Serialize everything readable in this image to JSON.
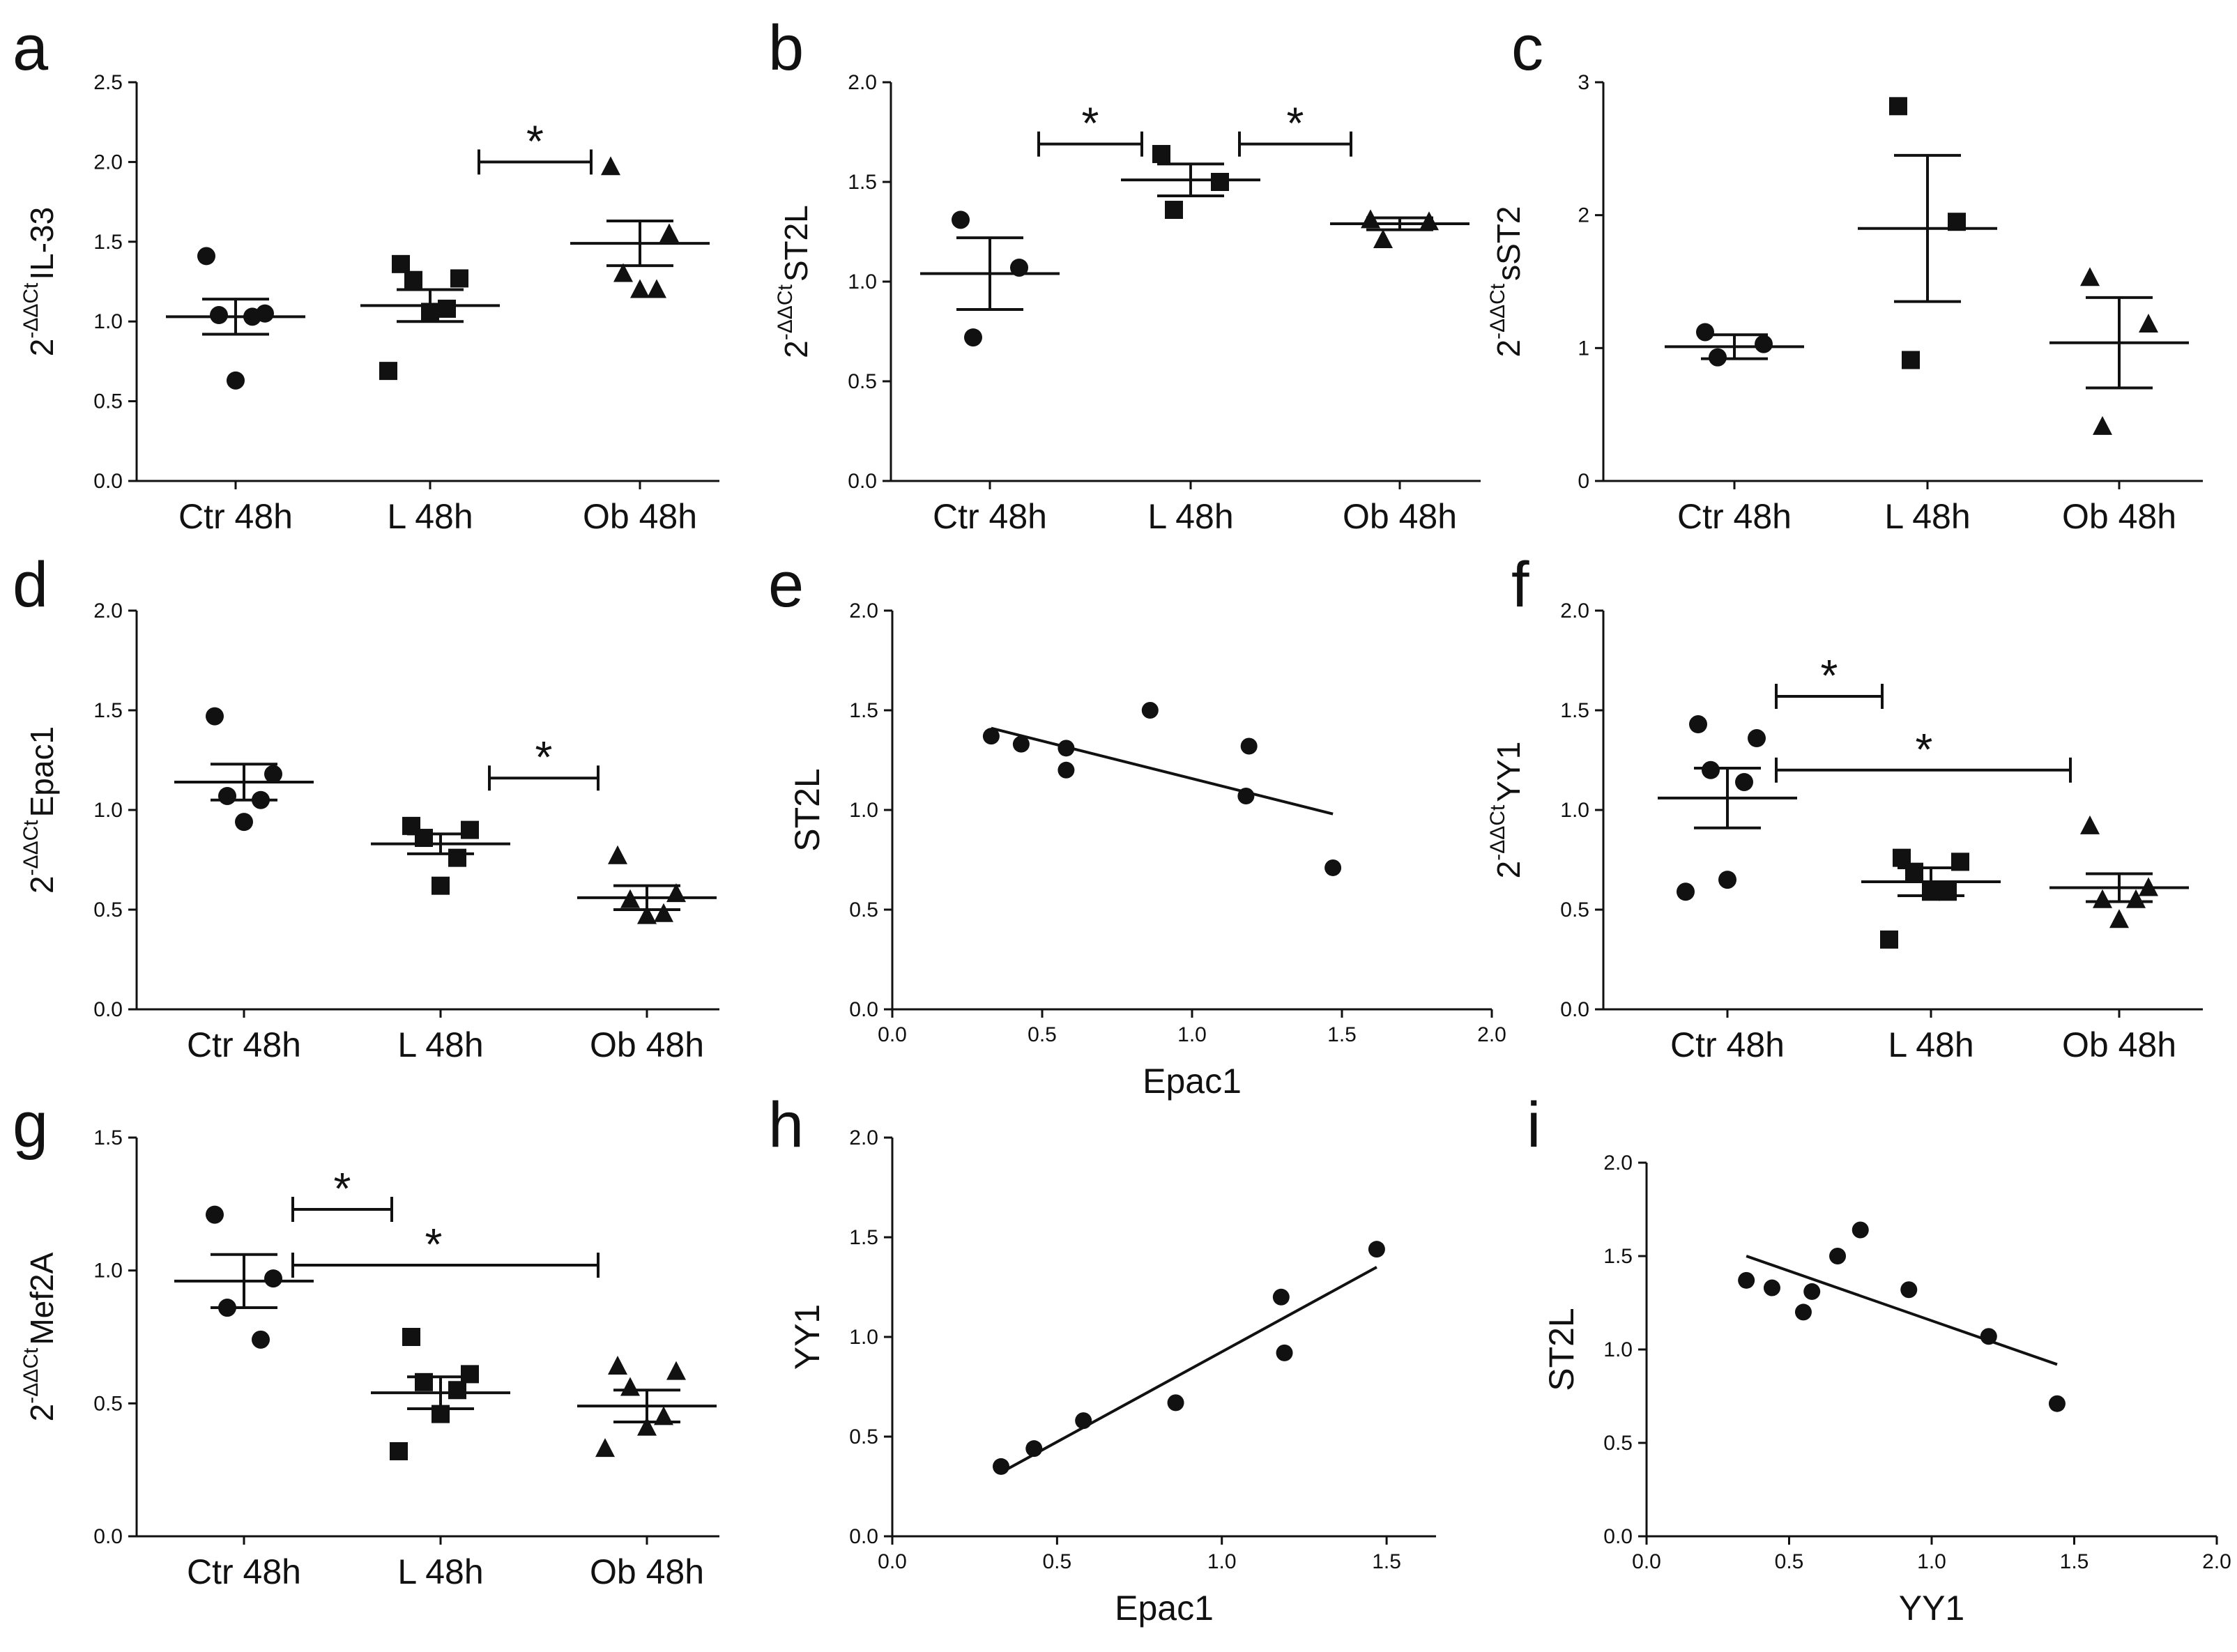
{
  "figure": {
    "panels": [
      {
        "letter": "a"
      },
      {
        "letter": "b"
      },
      {
        "letter": "c"
      },
      {
        "letter": "d"
      },
      {
        "letter": "e"
      },
      {
        "letter": "f"
      },
      {
        "letter": "g"
      },
      {
        "letter": "h"
      },
      {
        "letter": "i"
      }
    ]
  },
  "chart_data": [
    {
      "panel": "a",
      "type": "scatter",
      "categories": [
        "Ctr 48h",
        "L 48h",
        "Ob 48h"
      ],
      "ylabel": {
        "base": "2",
        "sup": "-ΔΔCt",
        "gene": "IL-33"
      },
      "ylim": [
        0,
        2.5
      ],
      "yticks": [
        "0.0",
        "0.5",
        "1.0",
        "1.5",
        "2.0",
        "2.5"
      ],
      "markers": [
        "circle",
        "square",
        "triangle"
      ],
      "points": [
        [
          1.41,
          1.05,
          1.04,
          1.03,
          0.63
        ],
        [
          1.36,
          1.27,
          1.26,
          1.08,
          1.06,
          0.69
        ],
        [
          1.97,
          1.55,
          1.3,
          1.2,
          1.2
        ]
      ],
      "mean": [
        1.03,
        1.1,
        1.49
      ],
      "sem": [
        0.11,
        0.1,
        0.14
      ],
      "significance": [
        {
          "from": 1,
          "to": 2,
          "level": 2.0,
          "label": "*"
        }
      ]
    },
    {
      "panel": "b",
      "type": "scatter",
      "categories": [
        "Ctr 48h",
        "L 48h",
        "Ob 48h"
      ],
      "ylabel": {
        "base": "2",
        "sup": "-ΔΔCt",
        "gene": "ST2L"
      },
      "ylim": [
        0,
        2.0
      ],
      "yticks": [
        "0.0",
        "0.5",
        "1.0",
        "1.5",
        "2.0"
      ],
      "markers": [
        "circle",
        "square",
        "triangle"
      ],
      "points": [
        [
          1.31,
          1.07,
          0.72
        ],
        [
          1.64,
          1.5,
          1.36
        ],
        [
          1.31,
          1.3,
          1.21
        ]
      ],
      "mean": [
        1.04,
        1.51,
        1.29
      ],
      "sem": [
        0.18,
        0.08,
        0.03
      ],
      "significance": [
        {
          "from": 0,
          "to": 1,
          "level": 1.69,
          "label": "*"
        },
        {
          "from": 1,
          "to": 2,
          "level": 1.69,
          "label": "*"
        }
      ]
    },
    {
      "panel": "c",
      "type": "scatter",
      "categories": [
        "Ctr 48h",
        "L 48h",
        "Ob 48h"
      ],
      "ylabel": {
        "base": "2",
        "sup": "-ΔΔCt",
        "gene": "sST2"
      },
      "ylim": [
        0,
        3
      ],
      "yticks": [
        "0",
        "1",
        "2",
        "3"
      ],
      "markers": [
        "circle",
        "square",
        "triangle"
      ],
      "points": [
        [
          1.12,
          1.03,
          0.93
        ],
        [
          2.82,
          1.95,
          0.91
        ],
        [
          1.53,
          1.18,
          0.41
        ]
      ],
      "mean": [
        1.01,
        1.9,
        1.04
      ],
      "sem": [
        0.09,
        0.55,
        0.34
      ],
      "significance": []
    },
    {
      "panel": "d",
      "type": "scatter",
      "categories": [
        "Ctr 48h",
        "L 48h",
        "Ob 48h"
      ],
      "ylabel": {
        "base": "2",
        "sup": "-ΔΔCt",
        "gene": "Epac1"
      },
      "ylim": [
        0,
        2.0
      ],
      "yticks": [
        "0.0",
        "0.5",
        "1.0",
        "1.5",
        "2.0"
      ],
      "markers": [
        "circle",
        "square",
        "triangle"
      ],
      "points": [
        [
          1.47,
          1.18,
          1.07,
          1.05,
          0.94
        ],
        [
          0.92,
          0.9,
          0.86,
          0.76,
          0.62
        ],
        [
          0.77,
          0.58,
          0.55,
          0.48,
          0.47
        ]
      ],
      "mean": [
        1.14,
        0.83,
        0.56
      ],
      "sem": [
        0.09,
        0.05,
        0.06
      ],
      "significance": [
        {
          "from": 1,
          "to": 2,
          "level": 1.16,
          "label": "*"
        }
      ]
    },
    {
      "panel": "e",
      "type": "scatter",
      "xlabel": "Epac1",
      "ylabel": "ST2L",
      "xlim": [
        0,
        2.0
      ],
      "ylim": [
        0,
        2.0
      ],
      "xticks": [
        "0.0",
        "0.5",
        "1.0",
        "1.5",
        "2.0"
      ],
      "yticks": [
        "0.0",
        "0.5",
        "1.0",
        "1.5",
        "2.0"
      ],
      "points": [
        [
          0.33,
          1.37
        ],
        [
          0.43,
          1.33
        ],
        [
          0.58,
          1.31
        ],
        [
          0.58,
          1.2
        ],
        [
          0.86,
          1.5
        ],
        [
          1.19,
          1.32
        ],
        [
          1.18,
          1.07
        ],
        [
          1.47,
          0.71
        ]
      ],
      "fit": {
        "x0": 0.33,
        "y0": 1.41,
        "x1": 1.47,
        "y1": 0.98
      }
    },
    {
      "panel": "f",
      "type": "scatter",
      "categories": [
        "Ctr 48h",
        "L 48h",
        "Ob 48h"
      ],
      "ylabel": {
        "base": "2",
        "sup": "-ΔΔCt",
        "gene": "YY1"
      },
      "ylim": [
        0,
        2.0
      ],
      "yticks": [
        "0.0",
        "0.5",
        "1.0",
        "1.5",
        "2.0"
      ],
      "markers": [
        "circle",
        "square",
        "triangle"
      ],
      "points": [
        [
          1.43,
          1.36,
          1.2,
          1.14,
          0.65,
          0.59
        ],
        [
          0.76,
          0.74,
          0.69,
          0.59,
          0.59,
          0.35
        ],
        [
          0.92,
          0.61,
          0.55,
          0.55,
          0.45
        ]
      ],
      "mean": [
        1.06,
        0.64,
        0.61
      ],
      "sem": [
        0.15,
        0.07,
        0.07
      ],
      "significance": [
        {
          "from": 0,
          "to": 1,
          "level": 1.57,
          "label": "*"
        },
        {
          "from": 0,
          "to": 2,
          "level": 1.2,
          "label": "*"
        }
      ]
    },
    {
      "panel": "g",
      "type": "scatter",
      "categories": [
        "Ctr 48h",
        "L 48h",
        "Ob 48h"
      ],
      "ylabel": {
        "base": "2",
        "sup": "-ΔΔCt",
        "gene": "Mef2A"
      },
      "ylim": [
        0,
        1.5
      ],
      "yticks": [
        "0.0",
        "0.5",
        "1.0",
        "1.5"
      ],
      "markers": [
        "circle",
        "square",
        "triangle"
      ],
      "points": [
        [
          1.21,
          0.97,
          0.86,
          0.74
        ],
        [
          0.75,
          0.61,
          0.58,
          0.55,
          0.46,
          0.32
        ],
        [
          0.64,
          0.62,
          0.56,
          0.45,
          0.41,
          0.33
        ]
      ],
      "mean": [
        0.96,
        0.54,
        0.49
      ],
      "sem": [
        0.1,
        0.06,
        0.06
      ],
      "significance": [
        {
          "from": 0,
          "to": 1,
          "level": 1.23,
          "label": "*"
        },
        {
          "from": 0,
          "to": 2,
          "level": 1.02,
          "label": "*"
        }
      ]
    },
    {
      "panel": "h",
      "type": "scatter",
      "xlabel": "Epac1",
      "ylabel": "YY1",
      "xlim": [
        0,
        1.65
      ],
      "ylim": [
        0,
        2.0
      ],
      "xticks": [
        "0.0",
        "0.5",
        "1.0",
        "1.5"
      ],
      "yticks": [
        "0.0",
        "0.5",
        "1.0",
        "1.5",
        "2.0"
      ],
      "points": [
        [
          0.33,
          0.35
        ],
        [
          0.43,
          0.44
        ],
        [
          0.58,
          0.58
        ],
        [
          0.86,
          0.67
        ],
        [
          1.18,
          1.2
        ],
        [
          1.19,
          0.92
        ],
        [
          1.47,
          1.44
        ]
      ],
      "fit": {
        "x0": 0.33,
        "y0": 0.32,
        "x1": 1.47,
        "y1": 1.35
      }
    },
    {
      "panel": "i",
      "type": "scatter",
      "xlabel": "YY1",
      "ylabel": "ST2L",
      "xlim": [
        0,
        2.0
      ],
      "ylim": [
        0,
        2.0
      ],
      "xticks": [
        "0.0",
        "0.5",
        "1.0",
        "1.5",
        "2.0"
      ],
      "yticks": [
        "0.0",
        "0.5",
        "1.0",
        "1.5",
        "2.0"
      ],
      "points": [
        [
          0.35,
          1.37
        ],
        [
          0.44,
          1.33
        ],
        [
          0.58,
          1.31
        ],
        [
          0.55,
          1.2
        ],
        [
          0.67,
          1.5
        ],
        [
          0.75,
          1.64
        ],
        [
          0.92,
          1.32
        ],
        [
          1.2,
          1.07
        ],
        [
          1.44,
          0.71
        ]
      ],
      "fit": {
        "x0": 0.35,
        "y0": 1.5,
        "x1": 1.44,
        "y1": 0.92
      }
    }
  ]
}
